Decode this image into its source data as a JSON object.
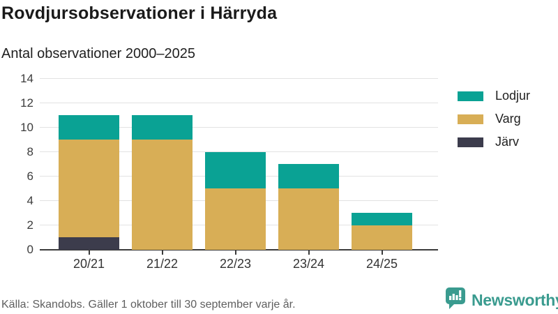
{
  "header": {
    "title": "Rovdjursobservationer i Härryda",
    "subtitle": "Antal observationer 2000–2025"
  },
  "chart_data": {
    "type": "bar",
    "stacked": true,
    "title": "Rovdjursobservationer i Härryda",
    "subtitle": "Antal observationer 2000–2025",
    "categories": [
      "20/21",
      "21/22",
      "22/23",
      "23/24",
      "24/25"
    ],
    "series": [
      {
        "name": "Lodjur",
        "color": "#0aa294",
        "values": [
          2,
          2,
          3,
          2,
          1
        ]
      },
      {
        "name": "Varg",
        "color": "#d8ae56",
        "values": [
          8,
          9,
          5,
          5,
          2
        ]
      },
      {
        "name": "Järv",
        "color": "#3c3c4c",
        "values": [
          1,
          0,
          0,
          0,
          0
        ]
      }
    ],
    "totals": [
      11,
      11,
      8,
      7,
      3
    ],
    "xlabel": "",
    "ylabel": "",
    "ylim": [
      0,
      14
    ],
    "yticks": [
      0,
      2,
      4,
      6,
      8,
      10,
      12,
      14
    ],
    "grid": true,
    "legend_position": "right"
  },
  "footer": {
    "source": "Källa: Skandobs. Gäller 1 oktober till 30 september varje år.",
    "brand": "Newsworthy"
  },
  "colors": {
    "lodjur": "#0aa294",
    "varg": "#d8ae56",
    "jarv": "#3c3c4c",
    "brand_teal": "#3a9b8f",
    "gridline": "#e2e2e2",
    "axis": "#3a3a3a",
    "text_muted": "#5f5f5f"
  }
}
